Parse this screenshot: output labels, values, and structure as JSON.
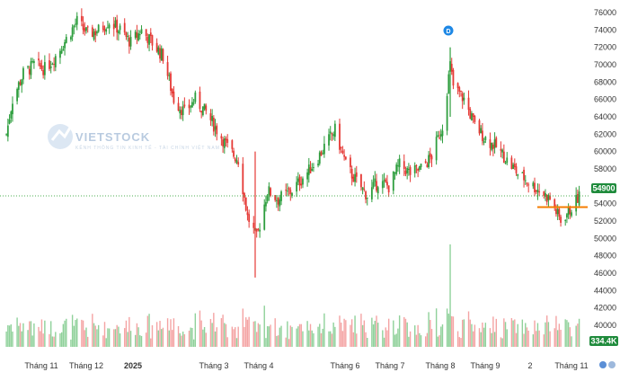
{
  "chart_data": {
    "type": "candlestick",
    "title": "",
    "watermark": {
      "text": "VIETSTOCK",
      "subtitle": "KÊNH THÔNG TIN KINH TẾ - TÀI CHÍNH VIỆT NAM"
    },
    "price_axis": {
      "ticks": [
        40000,
        42000,
        44000,
        46000,
        48000,
        50000,
        52000,
        54000,
        56000,
        58000,
        60000,
        62000,
        64000,
        66000,
        68000,
        70000,
        72000,
        74000,
        76000
      ],
      "labels": [
        "40000",
        "42000",
        "44000",
        "46000",
        "48000",
        "50000",
        "52000",
        "54000",
        "56000",
        "58000",
        "60000",
        "62000",
        "64000",
        "66000",
        "68000",
        "70000",
        "72000",
        "74000",
        "76000"
      ]
    },
    "x_axis": {
      "labels": [
        "Tháng 11",
        "Tháng 12",
        "2025",
        "Tháng 3",
        "Tháng 4",
        "Tháng 6",
        "Tháng 7",
        "Tháng 8",
        "Tháng 9",
        "2",
        "Tháng 11"
      ]
    },
    "last_price": {
      "value": 54900,
      "label": "54900",
      "color": "#1f8b3c"
    },
    "last_volume": {
      "label": "334.4K",
      "color": "#1f8b3c"
    },
    "dividend_marker": {
      "label": "D",
      "color": "#1e88e5"
    },
    "horizontal_line": {
      "value": 53600,
      "color": "#f57c00"
    },
    "colors": {
      "up": "#2e9e3e",
      "down": "#e53935",
      "up_volume": "#8fd19a",
      "down_volume": "#f4a3a3",
      "grid_price": "#4caf50"
    },
    "close_path": [
      [
        "2024-10-28",
        62000
      ],
      [
        "2024-11-01",
        66000
      ],
      [
        "2024-11-08",
        69000
      ],
      [
        "2024-11-15",
        70000
      ],
      [
        "2024-11-22",
        69500
      ],
      [
        "2024-11-29",
        71000
      ],
      [
        "2024-12-06",
        73000
      ],
      [
        "2024-12-13",
        75000
      ],
      [
        "2024-12-20",
        73500
      ],
      [
        "2024-12-27",
        74000
      ],
      [
        "2025-01-03",
        75000
      ],
      [
        "2025-01-10",
        74000
      ],
      [
        "2025-01-17",
        72500
      ],
      [
        "2025-01-24",
        74000
      ],
      [
        "2025-02-07",
        71000
      ],
      [
        "2025-02-14",
        66000
      ],
      [
        "2025-02-21",
        64500
      ],
      [
        "2025-02-28",
        66000
      ],
      [
        "2025-03-07",
        64500
      ],
      [
        "2025-03-14",
        62500
      ],
      [
        "2025-03-21",
        60500
      ],
      [
        "2025-03-28",
        59000
      ],
      [
        "2025-04-03",
        52500
      ],
      [
        "2025-04-09",
        50000
      ],
      [
        "2025-04-16",
        55500
      ],
      [
        "2025-04-23",
        54500
      ],
      [
        "2025-05-02",
        55500
      ],
      [
        "2025-05-09",
        57000
      ],
      [
        "2025-05-16",
        58500
      ],
      [
        "2025-05-23",
        60500
      ],
      [
        "2025-05-30",
        62500
      ],
      [
        "2025-06-06",
        58500
      ],
      [
        "2025-06-13",
        56500
      ],
      [
        "2025-06-20",
        55000
      ],
      [
        "2025-06-27",
        56500
      ],
      [
        "2025-07-04",
        56000
      ],
      [
        "2025-07-11",
        58500
      ],
      [
        "2025-07-18",
        57500
      ],
      [
        "2025-07-25",
        58000
      ],
      [
        "2025-08-01",
        59500
      ],
      [
        "2025-08-08",
        63000
      ],
      [
        "2025-08-13",
        70000
      ],
      [
        "2025-08-15",
        67500
      ],
      [
        "2025-08-22",
        66000
      ],
      [
        "2025-08-29",
        63000
      ],
      [
        "2025-09-05",
        61500
      ],
      [
        "2025-09-12",
        60500
      ],
      [
        "2025-09-19",
        59000
      ],
      [
        "2025-09-26",
        57500
      ],
      [
        "2025-10-03",
        56500
      ],
      [
        "2025-10-10",
        55500
      ],
      [
        "2025-10-17",
        54500
      ],
      [
        "2025-10-24",
        52000
      ],
      [
        "2025-10-31",
        53500
      ],
      [
        "2025-11-05",
        54900
      ]
    ]
  }
}
